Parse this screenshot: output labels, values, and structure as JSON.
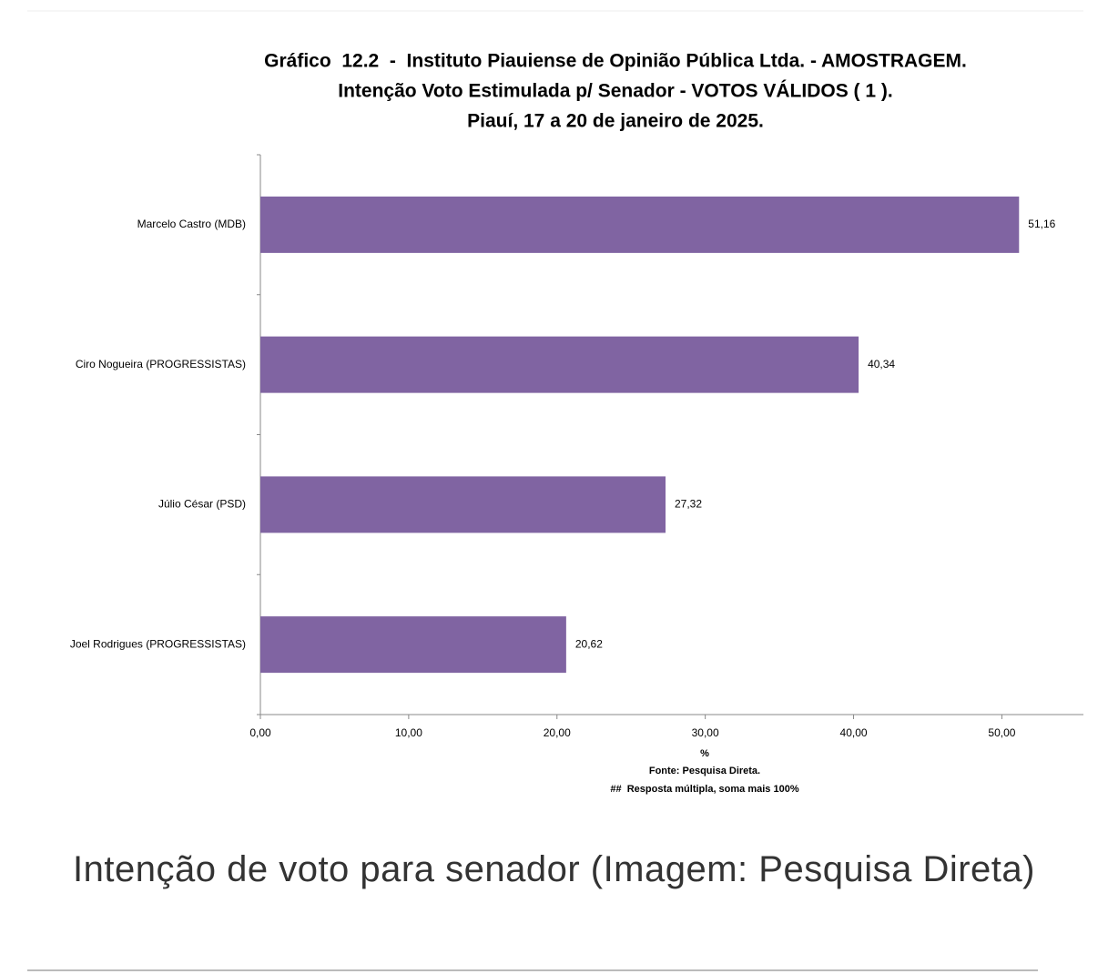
{
  "chart_data": {
    "type": "barh",
    "title": [
      "Gráfico  12.2  -  Instituto Piauiense de Opinião Pública Ltda. - AMOSTRAGEM.",
      "Intenção Voto Estimulada p/ Senador - VOTOS VÁLIDOS ( 1 ).",
      "Piauí, 17 a 20 de janeiro de 2025."
    ],
    "categories": [
      "Marcelo Castro (MDB)",
      "Ciro Nogueira (PROGRESSISTAS)",
      "Júlio César (PSD)",
      "Joel Rodrigues (PROGRESSISTAS)"
    ],
    "values": [
      51.16,
      40.34,
      27.32,
      20.62
    ],
    "value_labels": [
      "51,16",
      "40,34",
      "27,32",
      "20,62"
    ],
    "color": "#8064a2",
    "xlim": [
      0,
      55.5
    ],
    "xticks": [
      {
        "value": 0,
        "label": "0,00"
      },
      {
        "value": 10,
        "label": "10,00"
      },
      {
        "value": 20,
        "label": "20,00"
      },
      {
        "value": 30,
        "label": "30,00"
      },
      {
        "value": 40,
        "label": "40,00"
      },
      {
        "value": 50,
        "label": "50,00"
      }
    ],
    "xlabel": "%",
    "notes": [
      "Fonte: Pesquisa Direta.",
      "##  Resposta múltipla, soma mais 100%"
    ],
    "caption": "Intenção de voto para senador (Imagem: Pesquisa Direta)"
  }
}
